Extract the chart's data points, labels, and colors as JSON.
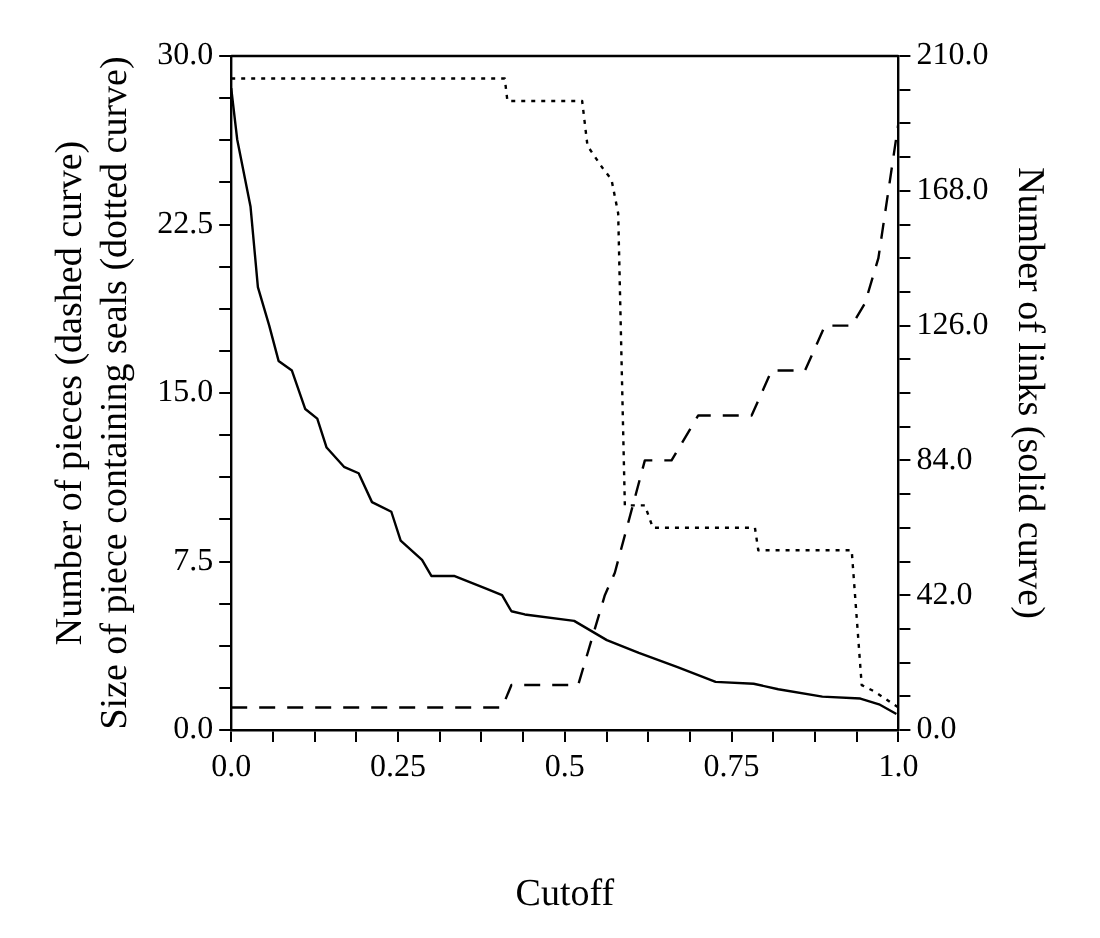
{
  "chart_data": {
    "type": "line",
    "xlabel": "Cutoff",
    "ylabel": "Number of pieces (dashed curve)\nSize of piece containing seals (dotted curve)",
    "y2label": "Number of links (solid curve)",
    "xlim": [
      0,
      1
    ],
    "ylim": [
      0,
      30
    ],
    "y2lim": [
      0,
      210
    ],
    "xticks": [
      {
        "value": 0,
        "label": "0.0"
      },
      {
        "value": 0.0625,
        "label": null
      },
      {
        "value": 0.125,
        "label": null
      },
      {
        "value": 0.1875,
        "label": null
      },
      {
        "value": 0.25,
        "label": "0.25"
      },
      {
        "value": 0.3125,
        "label": null
      },
      {
        "value": 0.375,
        "label": null
      },
      {
        "value": 0.4375,
        "label": null
      },
      {
        "value": 0.5,
        "label": "0.5"
      },
      {
        "value": 0.5625,
        "label": null
      },
      {
        "value": 0.625,
        "label": null
      },
      {
        "value": 0.6875,
        "label": null
      },
      {
        "value": 0.75,
        "label": "0.75"
      },
      {
        "value": 0.8125,
        "label": null
      },
      {
        "value": 0.875,
        "label": null
      },
      {
        "value": 0.9375,
        "label": null
      },
      {
        "value": 1,
        "label": "1.0"
      }
    ],
    "yticks": [
      {
        "value": 0,
        "label": "0.0"
      },
      {
        "value": 1.875,
        "label": null
      },
      {
        "value": 3.75,
        "label": null
      },
      {
        "value": 5.625,
        "label": null
      },
      {
        "value": 7.5,
        "label": "7.5"
      },
      {
        "value": 9.375,
        "label": null
      },
      {
        "value": 11.25,
        "label": null
      },
      {
        "value": 13.125,
        "label": null
      },
      {
        "value": 15,
        "label": "15.0"
      },
      {
        "value": 16.875,
        "label": null
      },
      {
        "value": 18.75,
        "label": null
      },
      {
        "value": 20.625,
        "label": null
      },
      {
        "value": 22.5,
        "label": "22.5"
      },
      {
        "value": 24.375,
        "label": null
      },
      {
        "value": 26.25,
        "label": null
      },
      {
        "value": 28.125,
        "label": null
      },
      {
        "value": 30,
        "label": "30.0"
      }
    ],
    "y2ticks": [
      {
        "value": 0,
        "label": "0.0"
      },
      {
        "value": 10.5,
        "label": null
      },
      {
        "value": 21,
        "label": null
      },
      {
        "value": 31.5,
        "label": null
      },
      {
        "value": 42,
        "label": "42.0"
      },
      {
        "value": 52.5,
        "label": null
      },
      {
        "value": 63,
        "label": null
      },
      {
        "value": 73.5,
        "label": null
      },
      {
        "value": 84,
        "label": "84.0"
      },
      {
        "value": 94.5,
        "label": null
      },
      {
        "value": 105,
        "label": null
      },
      {
        "value": 115.5,
        "label": null
      },
      {
        "value": 126,
        "label": "126.0"
      },
      {
        "value": 136.5,
        "label": null
      },
      {
        "value": 147,
        "label": null
      },
      {
        "value": 157.5,
        "label": null
      },
      {
        "value": 168,
        "label": "168.0"
      },
      {
        "value": 178.5,
        "label": null
      },
      {
        "value": 189,
        "label": null
      },
      {
        "value": 199.5,
        "label": null
      },
      {
        "value": 210,
        "label": "210.0"
      }
    ],
    "grid": false,
    "legend": false,
    "marker": "none",
    "series": [
      {
        "color": "#000000",
        "line_style": "dashed",
        "x": [
          0,
          0.406,
          0.42,
          0.52,
          0.54,
          0.56,
          0.575,
          0.62,
          0.66,
          0.7,
          0.78,
          0.81,
          0.86,
          0.89,
          0.93,
          0.95,
          0.97,
          1
        ],
        "values": [
          1,
          1,
          2,
          2,
          4,
          6,
          7,
          12,
          12,
          14,
          14,
          16,
          16,
          18,
          18,
          19,
          21,
          27
        ]
      },
      {
        "color": "#000000",
        "line_style": "dotted",
        "x": [
          0,
          0.41,
          0.414,
          0.526,
          0.534,
          0.557,
          0.57,
          0.58,
          0.59,
          0.62,
          0.632,
          0.785,
          0.79,
          0.93,
          0.945,
          0.965,
          0.99,
          1
        ],
        "values": [
          29,
          29,
          28,
          28,
          26,
          25,
          24.5,
          23,
          10,
          10,
          9,
          9,
          8,
          8,
          2,
          1.7,
          1.2,
          1
        ]
      },
      {
        "color": "#000000",
        "line_style": "solid",
        "axis": "y2",
        "x": [
          0,
          0.009,
          0.029,
          0.04,
          0.057,
          0.071,
          0.091,
          0.111,
          0.129,
          0.143,
          0.169,
          0.191,
          0.211,
          0.24,
          0.254,
          0.286,
          0.3,
          0.334,
          0.383,
          0.406,
          0.42,
          0.44,
          0.514,
          0.563,
          0.611,
          0.669,
          0.726,
          0.783,
          0.82,
          0.886,
          0.943,
          0.971,
          0.997
        ],
        "values": [
          200,
          184,
          163,
          138,
          126,
          115,
          112,
          100,
          97,
          88,
          82,
          80,
          71,
          68,
          59,
          53,
          48,
          48,
          44,
          42,
          37,
          36,
          34,
          28,
          24,
          19.6,
          15,
          14.4,
          12.7,
          10.4,
          9.8,
          8,
          5
        ]
      }
    ]
  }
}
